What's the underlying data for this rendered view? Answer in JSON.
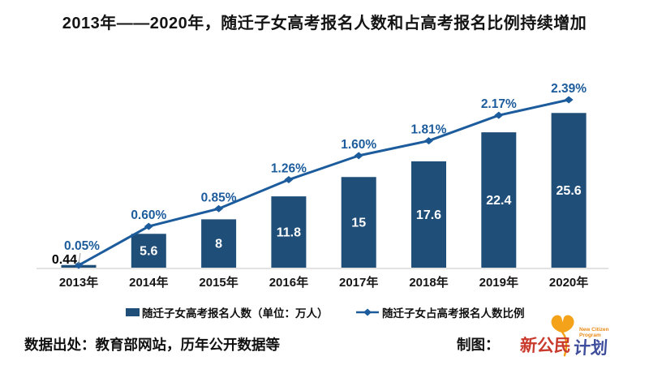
{
  "title": "2013年——2020年，随迁子女高考报名人数和占高考报名比例持续增加",
  "chart_data": {
    "type": "bar",
    "categories": [
      "2013年",
      "2014年",
      "2015年",
      "2016年",
      "2017年",
      "2018年",
      "2019年",
      "2020年"
    ],
    "series": [
      {
        "name": "随迁子女高考报名人数（单位：万人）",
        "type": "bar",
        "values": [
          0.44,
          5.6,
          8,
          11.8,
          15,
          17.6,
          22.4,
          25.6
        ],
        "labels": [
          "0.44",
          "5.6",
          "8",
          "11.8",
          "15",
          "17.6",
          "22.4",
          "25.6"
        ]
      },
      {
        "name": "随迁子女占高考报名人数比例",
        "type": "line",
        "values": [
          0.05,
          0.6,
          0.85,
          1.26,
          1.6,
          1.81,
          2.17,
          2.39
        ],
        "labels": [
          "0.05%",
          "0.60%",
          "0.85%",
          "1.26%",
          "1.60%",
          "1.81%",
          "2.17%",
          "2.39%"
        ]
      }
    ],
    "ylim_bar": [
      0,
      27
    ],
    "ylim_line": [
      0,
      2.6
    ],
    "grid": false,
    "legend_position": "bottom",
    "colors": {
      "bar": "#1F4E79",
      "line": "#1C5C9C",
      "pct_label": "#1C5C9C",
      "bar_label": "#FFFFFF",
      "first_bar_label": "#000000",
      "axis": "#D9D9D9",
      "leader_line": "#9a9a9a",
      "tick_label": "#141414"
    }
  },
  "legend": {
    "items": [
      {
        "label": "随迁子女高考报名人数（单位：万人）",
        "marker": "bar-swatch"
      },
      {
        "label": "随迁子女占高考报名人数比例",
        "marker": "line-diamond"
      }
    ]
  },
  "footer": {
    "source": "数据出处：教育部网站，历年公开数据等",
    "credit_label": "制图：",
    "logo": {
      "cn_left": "新公民",
      "cn_right": "计划",
      "en_line1": "New Citizen",
      "en_line2": "Program",
      "leaf_color": "#F5A21B",
      "red": "#C93A2C",
      "blue": "#3F4E9C"
    }
  }
}
